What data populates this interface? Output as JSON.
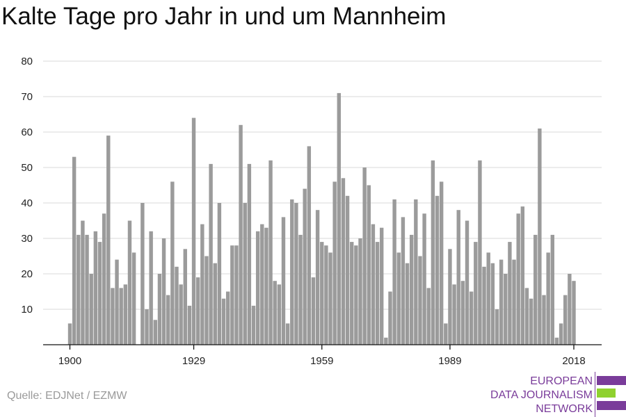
{
  "title": "Kalte Tage pro Jahr in und um Mannheim",
  "source": "Quelle: EDJNet / EZMW",
  "logo": {
    "lines": [
      "EUROPEAN",
      "DATA JOURNALISM",
      "NETWORK"
    ],
    "colors": [
      "#7a3c9a",
      "#8fd12f",
      "#7a3c9a"
    ]
  },
  "chart_data": {
    "type": "bar",
    "title": "Kalte Tage pro Jahr in und um Mannheim",
    "xlabel": "",
    "ylabel": "",
    "x_start": 1900,
    "x_end": 2018,
    "ylim": [
      0,
      80
    ],
    "yticks": [
      10,
      20,
      30,
      40,
      50,
      60,
      70,
      80
    ],
    "xticks": [
      1900,
      1929,
      1959,
      1989,
      2018
    ],
    "grid": true,
    "bar_color": "#9b9b9b",
    "years": [
      1900,
      1901,
      1902,
      1903,
      1904,
      1905,
      1906,
      1907,
      1908,
      1909,
      1910,
      1911,
      1912,
      1913,
      1914,
      1915,
      1916,
      1917,
      1918,
      1919,
      1920,
      1921,
      1922,
      1923,
      1924,
      1925,
      1926,
      1927,
      1928,
      1929,
      1930,
      1931,
      1932,
      1933,
      1934,
      1935,
      1936,
      1937,
      1938,
      1939,
      1940,
      1941,
      1942,
      1943,
      1944,
      1945,
      1946,
      1947,
      1948,
      1949,
      1950,
      1951,
      1952,
      1953,
      1954,
      1955,
      1956,
      1957,
      1958,
      1959,
      1960,
      1961,
      1962,
      1963,
      1964,
      1965,
      1966,
      1967,
      1968,
      1969,
      1970,
      1971,
      1972,
      1973,
      1974,
      1975,
      1976,
      1977,
      1978,
      1979,
      1980,
      1981,
      1982,
      1983,
      1984,
      1985,
      1986,
      1987,
      1988,
      1989,
      1990,
      1991,
      1992,
      1993,
      1994,
      1995,
      1996,
      1997,
      1998,
      1999,
      2000,
      2001,
      2002,
      2003,
      2004,
      2005,
      2006,
      2007,
      2008,
      2009,
      2010,
      2011,
      2012,
      2013,
      2014,
      2015,
      2016,
      2017,
      2018
    ],
    "values": [
      6,
      53,
      31,
      35,
      31,
      20,
      32,
      29,
      37,
      59,
      16,
      24,
      16,
      17,
      35,
      26,
      0,
      40,
      10,
      32,
      7,
      20,
      30,
      14,
      46,
      22,
      17,
      27,
      11,
      64,
      19,
      34,
      25,
      51,
      23,
      40,
      13,
      15,
      28,
      28,
      62,
      40,
      51,
      11,
      32,
      34,
      33,
      52,
      18,
      17,
      36,
      6,
      41,
      40,
      31,
      44,
      56,
      19,
      38,
      29,
      28,
      26,
      46,
      71,
      47,
      42,
      29,
      28,
      30,
      50,
      45,
      34,
      29,
      33,
      2,
      15,
      41,
      26,
      36,
      23,
      31,
      41,
      25,
      37,
      16,
      52,
      42,
      46,
      6,
      27,
      17,
      38,
      18,
      35,
      15,
      29,
      52,
      22,
      26,
      23,
      10,
      24,
      20,
      29,
      24,
      37,
      39,
      16,
      13,
      31,
      61,
      14,
      26,
      31,
      2,
      6,
      14,
      20,
      18
    ]
  }
}
